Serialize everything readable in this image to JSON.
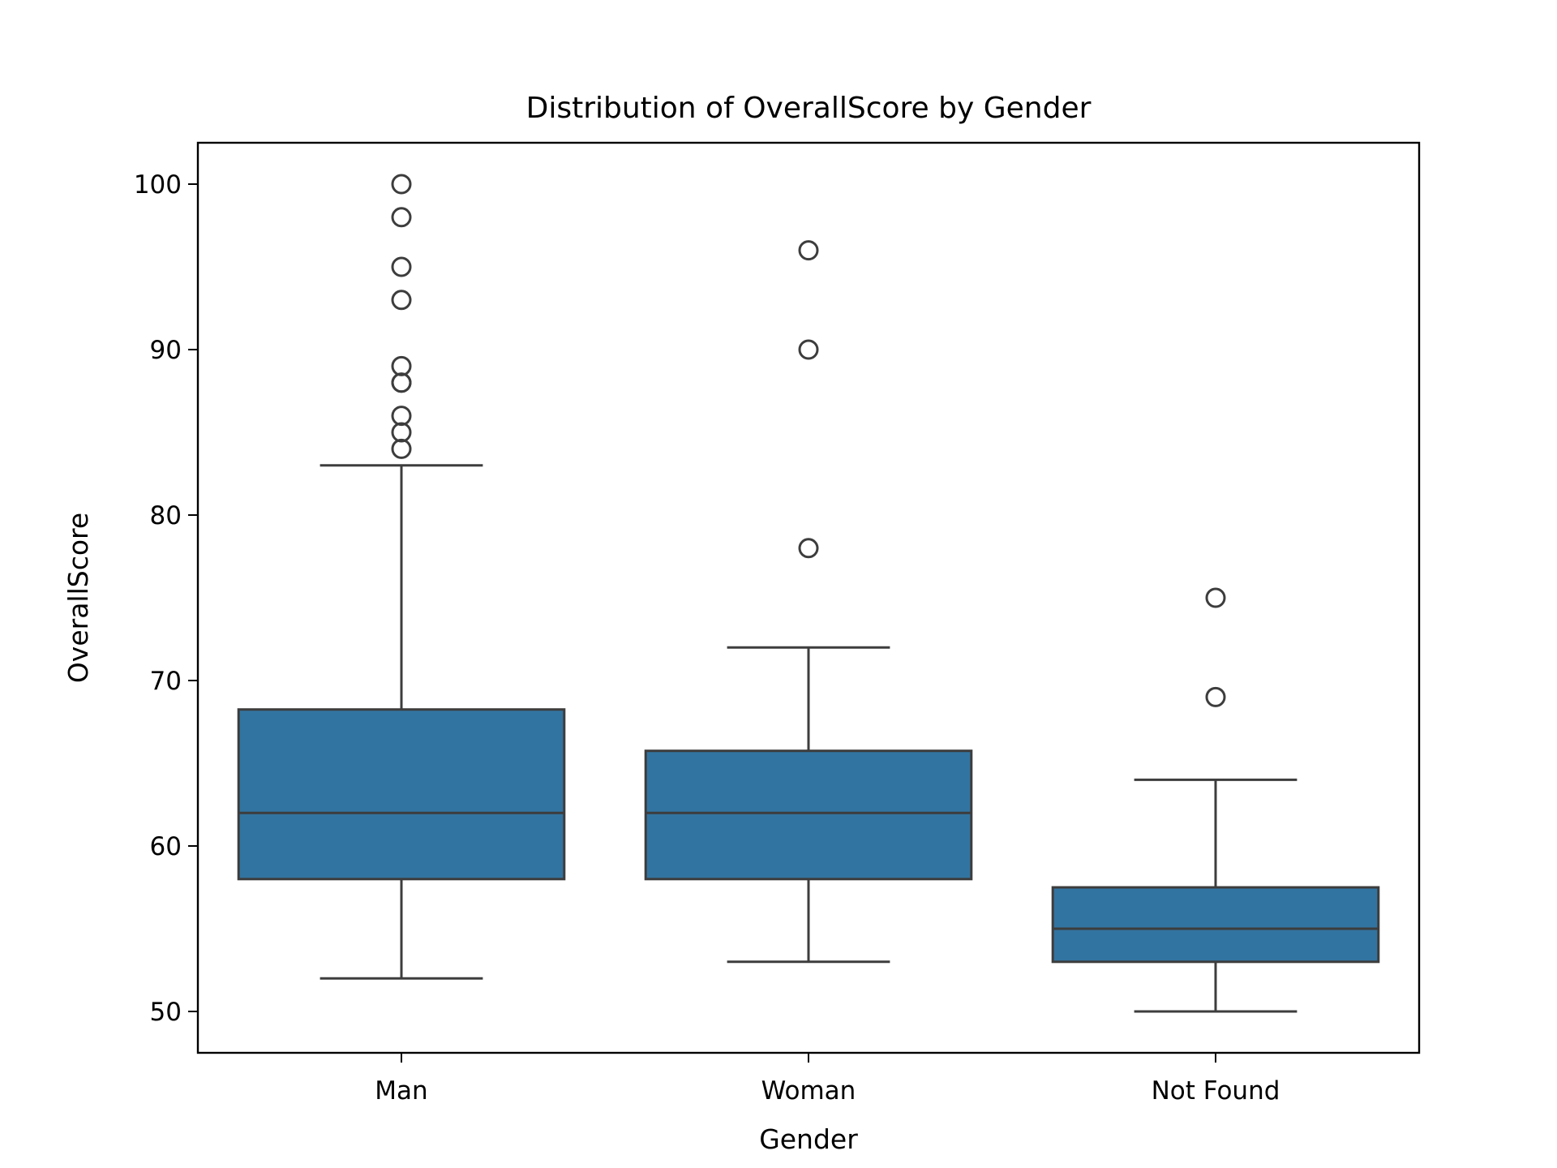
{
  "chart_data": {
    "type": "box",
    "title": "Distribution of OverallScore by Gender",
    "xlabel": "Gender",
    "ylabel": "OverallScore",
    "ylim": [
      47.5,
      102.5
    ],
    "yticks": [
      50,
      60,
      70,
      80,
      90,
      100
    ],
    "categories": [
      "Man",
      "Woman",
      "Not Found"
    ],
    "grid": false,
    "legend": "none",
    "box_color": "#3274a1",
    "line_color": "#3d3d3d",
    "boxes": [
      {
        "category": "Man",
        "whisker_low": 52,
        "q1": 58,
        "median": 62,
        "q3": 68.25,
        "whisker_high": 83,
        "outliers": [
          84,
          85,
          86,
          88,
          88,
          89,
          93,
          95,
          98,
          100
        ]
      },
      {
        "category": "Woman",
        "whisker_low": 53,
        "q1": 58,
        "median": 62,
        "q3": 65.75,
        "whisker_high": 72,
        "outliers": [
          78,
          90,
          96
        ]
      },
      {
        "category": "Not Found",
        "whisker_low": 50,
        "q1": 53,
        "median": 55,
        "q3": 57.5,
        "whisker_high": 64,
        "outliers": [
          69,
          75
        ]
      }
    ]
  }
}
